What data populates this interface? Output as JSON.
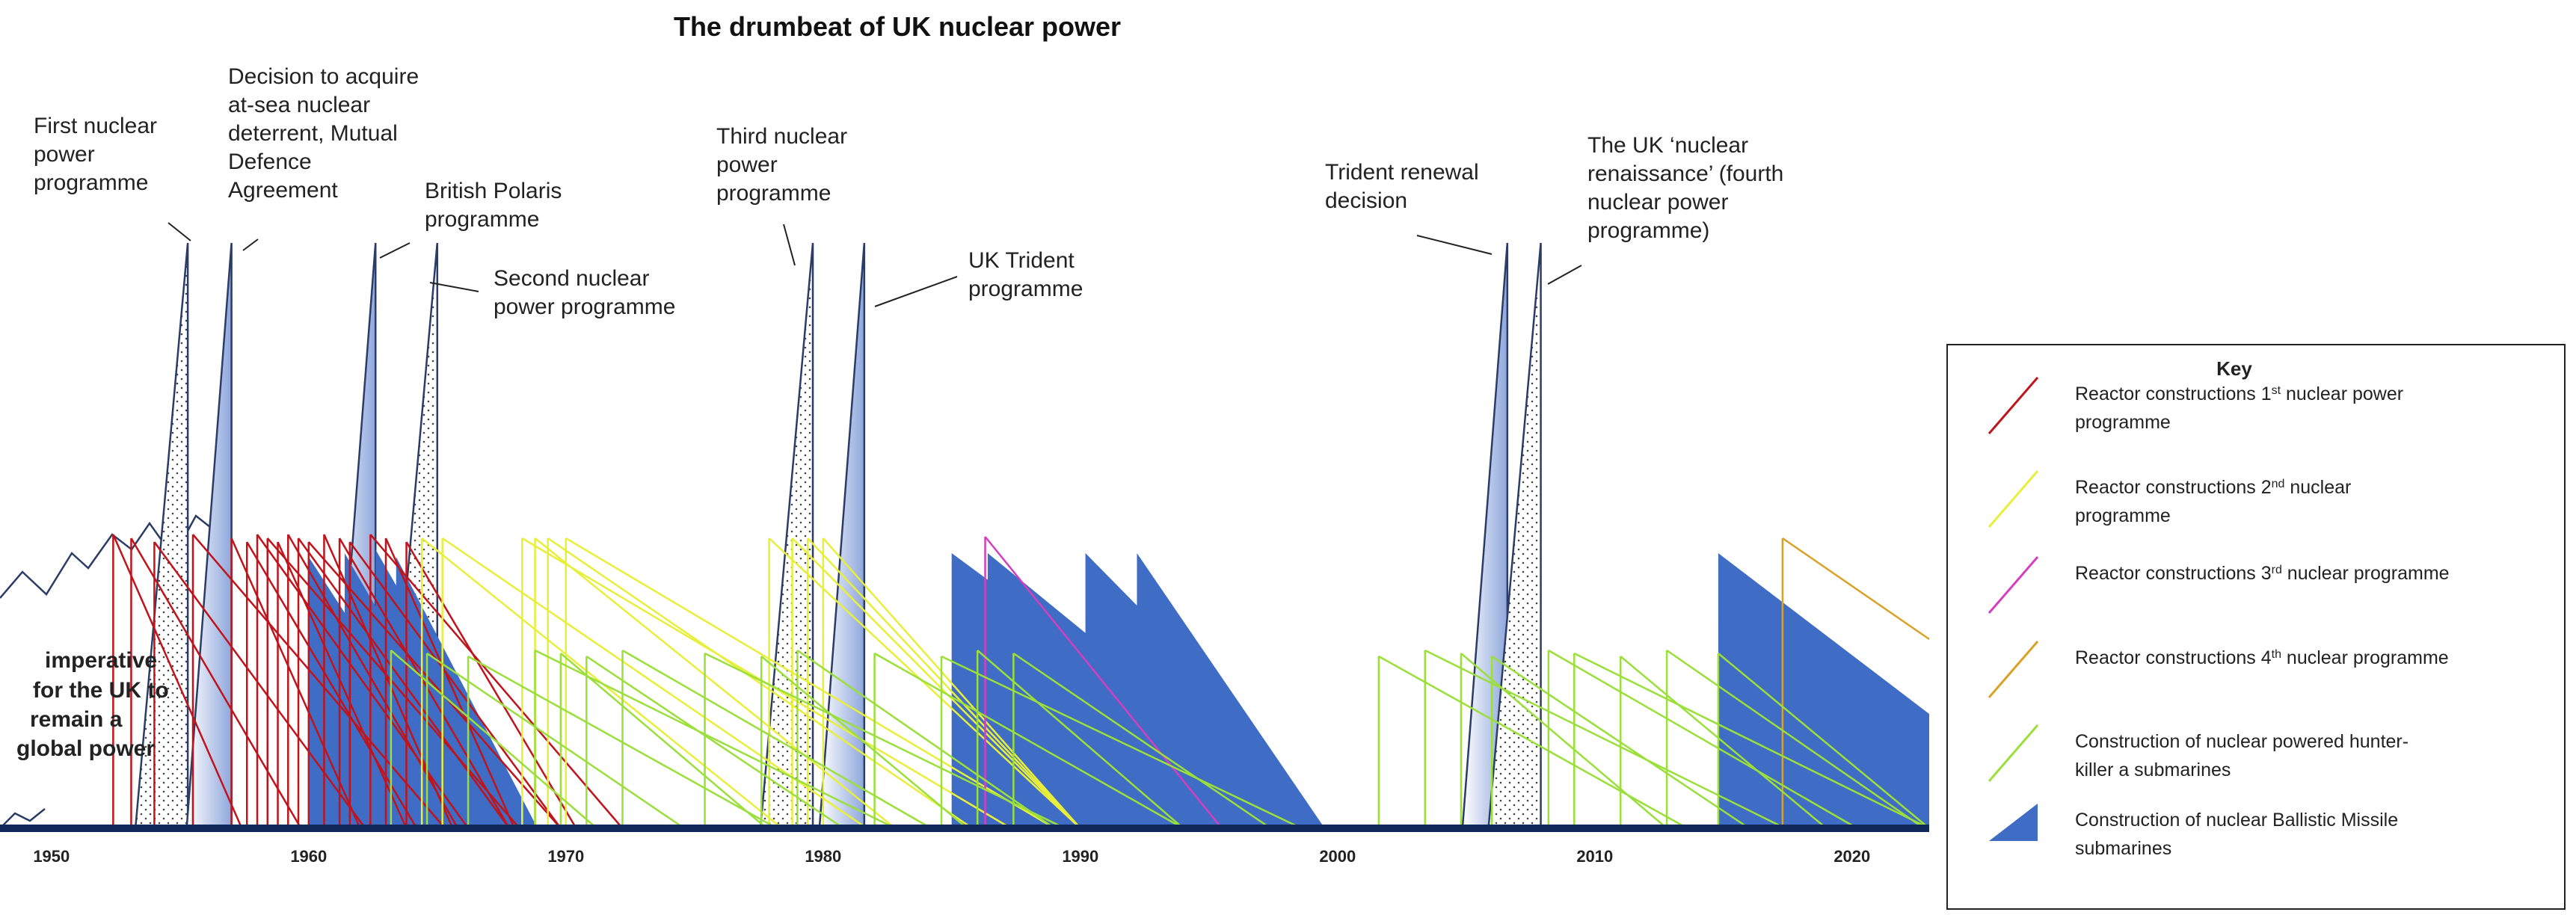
{
  "chart_data": {
    "type": "timeline",
    "title": "The drumbeat of UK nuclear power",
    "x_range": [
      1948,
      2023
    ],
    "x_ticks": [
      "1950",
      "1960",
      "1970",
      "1980",
      "1990",
      "2000",
      "2010",
      "2020"
    ],
    "left_annotation": [
      "imperative",
      "for the UK to",
      "remain a",
      "global power"
    ],
    "decision_peaks": [
      {
        "year": 1955.3,
        "style": "dotted",
        "label": [
          "First nuclear",
          "power",
          "programme"
        ]
      },
      {
        "year": 1957.0,
        "style": "blue",
        "label": [
          "Decision to acquire",
          "at-sea nuclear",
          "deterrent, Mutual",
          "Defence",
          "Agreement"
        ]
      },
      {
        "year": 1962.6,
        "style": "blue",
        "label": [
          "British Polaris",
          "programme"
        ]
      },
      {
        "year": 1965.0,
        "style": "dotted",
        "label": [
          "Second nuclear",
          "power programme"
        ]
      },
      {
        "year": 1979.6,
        "style": "dotted",
        "label": [
          "Third nuclear",
          "power",
          "programme"
        ]
      },
      {
        "year": 1981.6,
        "style": "blue",
        "label": [
          "UK Trident",
          "programme"
        ]
      },
      {
        "year": 2006.6,
        "style": "blue",
        "label": [
          "Trident renewal",
          "decision"
        ]
      },
      {
        "year": 2007.9,
        "style": "dotted",
        "label": [
          "The UK ‘nuclear",
          "renaissance’ (fourth",
          "nuclear power",
          "programme)"
        ]
      }
    ],
    "series": [
      {
        "name": "Reactor constructions 1st nuclear power programme",
        "color": "#c0141c",
        "starts": [
          1952.4,
          1953.1,
          1954.0,
          1955.5,
          1957.0,
          1957.6,
          1958.0,
          1958.4,
          1958.8,
          1959.2,
          1959.6,
          1960.0,
          1960.6,
          1961.2,
          1961.6,
          1962.4,
          1963.0,
          1963.8
        ]
      },
      {
        "name": "Reactor constructions 2nd nuclear programme",
        "color": "#e8ef3a",
        "starts": [
          1964.4,
          1965.2,
          1968.3,
          1968.8,
          1969.3,
          1970.0,
          1977.9,
          1978.8,
          1979.4,
          1980.0
        ]
      },
      {
        "name": "Reactor constructions 3rd nuclear programme",
        "color": "#d43fc0",
        "starts": [
          1986.3
        ]
      },
      {
        "name": "Reactor constructions 4th nuclear programme",
        "color": "#d9a227",
        "starts": [
          2017.3
        ]
      },
      {
        "name": "Construction of nuclear powered hunter-killer a submarines",
        "color": "#9adf3a",
        "starts": [
          1963.2,
          1964.6,
          1966.2,
          1968.8,
          1969.8,
          1970.8,
          1972.2,
          1975.4,
          1977.6,
          1979.0,
          1982.0,
          1984.6,
          1986.0,
          1987.4,
          2001.6,
          2003.4,
          2004.8,
          2006.0,
          2008.2,
          2009.2,
          2011.0,
          2012.8,
          2014.8
        ]
      },
      {
        "name": "Construction of nuclear Ballistic Missile submarines",
        "color": "#3f6cc4",
        "starts": [
          1960.0,
          1961.4,
          1962.6,
          1963.4,
          1985.0,
          1986.4,
          1990.2,
          1992.2,
          2014.8
        ]
      }
    ],
    "legend": {
      "title": "Key",
      "position": "right"
    }
  },
  "key": {
    "title": "Key",
    "items": [
      {
        "text": "Reactor constructions 1",
        "sup": "st",
        "rest": " nuclear power",
        "line2": "programme"
      },
      {
        "text": "Reactor constructions 2",
        "sup": "nd",
        "rest": " nuclear",
        "line2": "programme"
      },
      {
        "text": "Reactor constructions 3",
        "sup": "rd",
        "rest": " nuclear programme",
        "line2": ""
      },
      {
        "text": "Reactor constructions 4",
        "sup": "th",
        "rest": " nuclear programme",
        "line2": ""
      },
      {
        "text": "Construction of nuclear powered hunter-",
        "sup": "",
        "rest": "",
        "line2": "killer a submarines"
      },
      {
        "text": "Construction of nuclear Ballistic Missile",
        "sup": "",
        "rest": "",
        "line2": "submarines"
      }
    ]
  }
}
